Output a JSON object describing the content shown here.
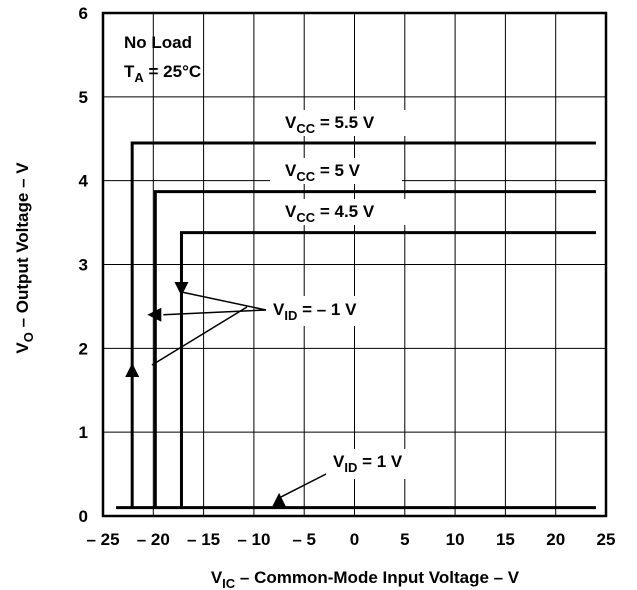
{
  "chart_data": {
    "type": "line",
    "xlabel_main": "V",
    "xlabel_sub": "IC",
    "xlabel_rest": " – Common-Mode Input Voltage – V",
    "ylabel_main": "V",
    "ylabel_sub": "O",
    "ylabel_rest": " – Output Voltage – V",
    "xlim": [
      -25,
      25
    ],
    "ylim": [
      0,
      6
    ],
    "x_ticks": [
      -25,
      -20,
      -15,
      -10,
      -5,
      0,
      5,
      10,
      15,
      20,
      25
    ],
    "x_tick_labels": [
      "– 25",
      "– 20",
      "– 15",
      "– 10",
      "– 5",
      "0",
      "5",
      "10",
      "15",
      "20",
      "25"
    ],
    "y_ticks": [
      0,
      1,
      2,
      3,
      4,
      5,
      6
    ],
    "y_tick_labels": [
      "0",
      "1",
      "2",
      "3",
      "4",
      "5",
      "6"
    ],
    "grid": true,
    "conditions": {
      "line1": "No Load",
      "line2_main": "T",
      "line2_sub": "A",
      "line2_rest": " = 25°C"
    },
    "series": [
      {
        "name": "VCC = 5.5 V",
        "label_main": "V",
        "label_sub": "CC",
        "label_rest": " = 5.5 V",
        "points": [
          [
            -22.1,
            0.1
          ],
          [
            -22.1,
            4.45
          ],
          [
            24,
            4.45
          ]
        ]
      },
      {
        "name": "VCC = 5 V",
        "label_main": "V",
        "label_sub": "CC",
        "label_rest": " = 5 V",
        "points": [
          [
            -19.8,
            0.1
          ],
          [
            -19.8,
            3.87
          ],
          [
            24,
            3.87
          ]
        ]
      },
      {
        "name": "VCC = 4.5 V",
        "label_main": "V",
        "label_sub": "CC",
        "label_rest": " = 4.5 V",
        "points": [
          [
            -17.2,
            0.1
          ],
          [
            -17.2,
            3.38
          ],
          [
            24,
            3.38
          ]
        ]
      },
      {
        "name": "VID = 1 V baseline",
        "label_main": "",
        "label_sub": "",
        "label_rest": "",
        "points": [
          [
            -23.7,
            0.1
          ],
          [
            24,
            0.1
          ]
        ]
      }
    ],
    "annotations": [
      {
        "main": "V",
        "sub": "ID",
        "rest": " = – 1 V"
      },
      {
        "main": "V",
        "sub": "ID",
        "rest": " = 1 V"
      }
    ]
  }
}
